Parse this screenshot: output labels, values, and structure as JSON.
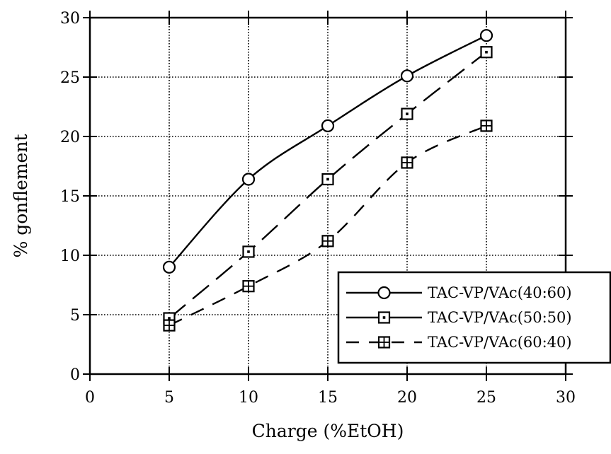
{
  "chart_data": {
    "type": "line",
    "xlabel": "Charge (%EtOH)",
    "ylabel": "% gonflement",
    "xlim": [
      0,
      30
    ],
    "ylim": [
      0,
      30
    ],
    "xticks": [
      0,
      5,
      10,
      15,
      20,
      25,
      30
    ],
    "yticks": [
      0,
      5,
      10,
      15,
      20,
      25,
      30
    ],
    "grid": true,
    "legend_position": "bottom-right",
    "series": [
      {
        "name": "TAC-VP/VAc(40:60)",
        "marker": "circle",
        "line_style": "solid",
        "x": [
          5,
          10,
          15,
          20,
          25
        ],
        "y": [
          9.0,
          16.4,
          20.9,
          25.1,
          28.5
        ]
      },
      {
        "name": "TAC-VP/VAc(50:50)",
        "marker": "square",
        "line_style": "long-dash",
        "x": [
          5,
          10,
          15,
          20,
          25
        ],
        "y": [
          4.7,
          10.3,
          16.4,
          21.9,
          27.1
        ]
      },
      {
        "name": "TAC-VP/VAc(60:40)",
        "marker": "crossed-square",
        "line_style": "dash",
        "x": [
          5,
          10,
          15,
          20,
          25
        ],
        "y": [
          4.1,
          7.4,
          11.2,
          17.8,
          20.9
        ]
      }
    ]
  }
}
